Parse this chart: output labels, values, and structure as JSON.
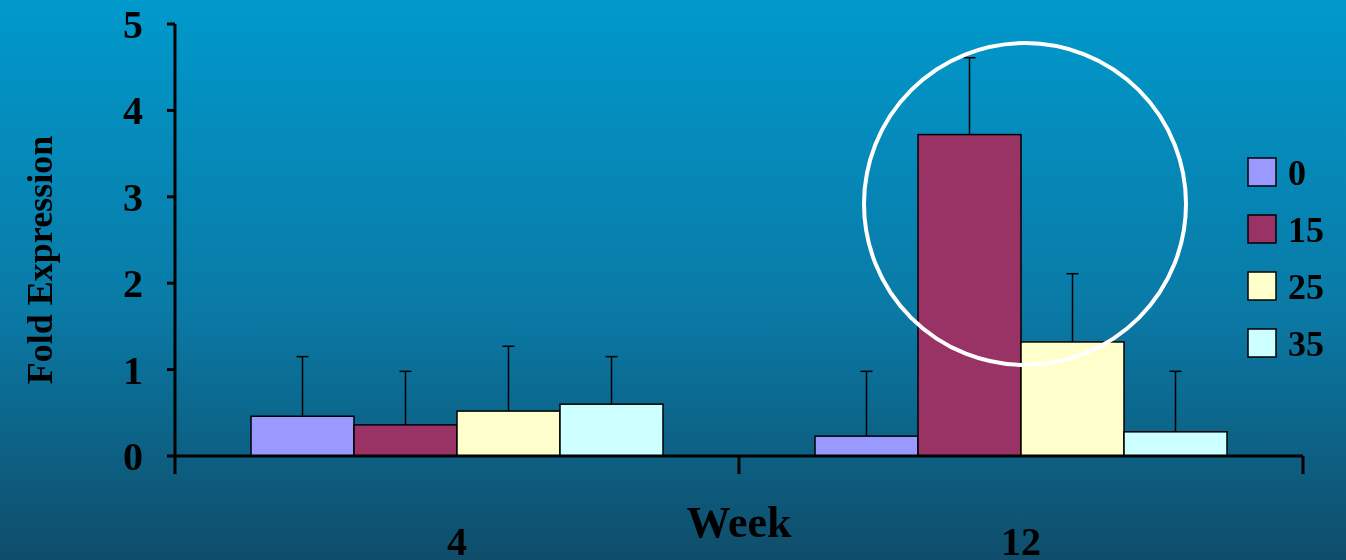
{
  "chart_data": {
    "type": "bar",
    "xlabel": "Week",
    "ylabel": "Fold Expression",
    "categories": [
      "4",
      "12"
    ],
    "ylim": [
      0,
      5
    ],
    "yticks": [
      0,
      1,
      2,
      3,
      4,
      5
    ],
    "grid": false,
    "legend": "right",
    "series": [
      {
        "name": "0",
        "color": "#9999ff",
        "values": [
          0.46,
          0.23
        ],
        "errors": [
          [
            0.46,
            1.15
          ],
          [
            0.23,
            0.98
          ]
        ]
      },
      {
        "name": "15",
        "color": "#993366",
        "values": [
          0.36,
          3.72
        ],
        "errors": [
          [
            0.36,
            0.98
          ],
          [
            3.72,
            4.61
          ]
        ]
      },
      {
        "name": "25",
        "color": "#ffffcc",
        "values": [
          0.52,
          1.32
        ],
        "errors": [
          [
            0.52,
            1.27
          ],
          [
            1.32,
            2.11
          ]
        ]
      },
      {
        "name": "35",
        "color": "#ccffff",
        "values": [
          0.6,
          0.28
        ],
        "errors": [
          [
            0.6,
            1.15
          ],
          [
            0.28,
            0.98
          ]
        ]
      }
    ]
  }
}
